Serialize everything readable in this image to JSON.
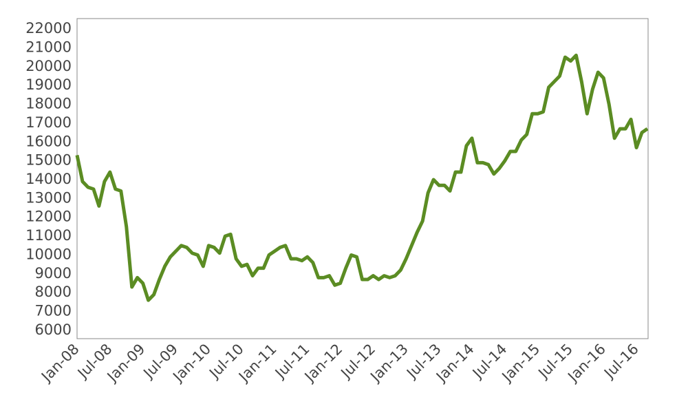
{
  "chart_data": {
    "type": "line",
    "x": [
      "Jan-08",
      "Feb-08",
      "Mar-08",
      "Apr-08",
      "May-08",
      "Jun-08",
      "Jul-08",
      "Aug-08",
      "Sep-08",
      "Oct-08",
      "Nov-08",
      "Dec-08",
      "Jan-09",
      "Feb-09",
      "Mar-09",
      "Apr-09",
      "May-09",
      "Jun-09",
      "Jul-09",
      "Aug-09",
      "Sep-09",
      "Oct-09",
      "Nov-09",
      "Dec-09",
      "Jan-10",
      "Feb-10",
      "Mar-10",
      "Apr-10",
      "May-10",
      "Jun-10",
      "Jul-10",
      "Aug-10",
      "Sep-10",
      "Oct-10",
      "Nov-10",
      "Dec-10",
      "Jan-11",
      "Feb-11",
      "Mar-11",
      "Apr-11",
      "May-11",
      "Jun-11",
      "Jul-11",
      "Aug-11",
      "Sep-11",
      "Oct-11",
      "Nov-11",
      "Dec-11",
      "Jan-12",
      "Feb-12",
      "Mar-12",
      "Apr-12",
      "May-12",
      "Jun-12",
      "Jul-12",
      "Aug-12",
      "Sep-12",
      "Oct-12",
      "Nov-12",
      "Dec-12",
      "Jan-13",
      "Feb-13",
      "Mar-13",
      "Apr-13",
      "May-13",
      "Jun-13",
      "Jul-13",
      "Aug-13",
      "Sep-13",
      "Oct-13",
      "Nov-13",
      "Dec-13",
      "Jan-14",
      "Feb-14",
      "Mar-14",
      "Apr-14",
      "May-14",
      "Jun-14",
      "Jul-14",
      "Aug-14",
      "Sep-14",
      "Oct-14",
      "Nov-14",
      "Dec-14",
      "Jan-15",
      "Feb-15",
      "Mar-15",
      "Apr-15",
      "May-15",
      "Jun-15",
      "Jul-15",
      "Aug-15",
      "Sep-15",
      "Oct-15",
      "Nov-15",
      "Dec-15",
      "Jan-16",
      "Feb-16",
      "Mar-16",
      "Apr-16",
      "May-16",
      "Jun-16",
      "Jul-16",
      "Aug-16",
      "Sep-16"
    ],
    "series": [
      {
        "color": "#5b8c23",
        "values": [
          15300,
          13900,
          13600,
          13500,
          12600,
          13900,
          14400,
          13500,
          13400,
          11500,
          8300,
          8800,
          8500,
          7600,
          7900,
          8700,
          9400,
          9900,
          10200,
          10500,
          10400,
          10100,
          10000,
          9400,
          10500,
          10400,
          10100,
          11000,
          11100,
          9800,
          9400,
          9500,
          8900,
          9300,
          9300,
          10000,
          10200,
          10400,
          10500,
          9800,
          9800,
          9700,
          9900,
          9600,
          8800,
          8800,
          8900,
          8400,
          8500,
          9300,
          10000,
          9900,
          8700,
          8700,
          8900,
          8700,
          8900,
          8800,
          8900,
          9200,
          9800,
          10500,
          11200,
          11800,
          13300,
          14000,
          13700,
          13700,
          13400,
          14400,
          14400,
          15800,
          16200,
          14900,
          14900,
          14800,
          14300,
          14600,
          15000,
          15500,
          15500,
          16100,
          16400,
          17500,
          17500,
          17600,
          18900,
          19200,
          19500,
          20500,
          20300,
          20600,
          19200,
          17500,
          18800,
          19700,
          19400,
          18000,
          16200,
          16700,
          16700,
          17200,
          15700,
          16500,
          16700
        ]
      }
    ],
    "xticks": [
      "Jan-08",
      "Jul-08",
      "Jan-09",
      "Jul-09",
      "Jan-10",
      "Jul-10",
      "Jan-11",
      "Jul-11",
      "Jan-12",
      "Jul-12",
      "Jan-13",
      "Jul-13",
      "Jan-14",
      "Jul-14",
      "Jan-15",
      "Jul-15",
      "Jan-16",
      "Jul-16"
    ],
    "ylim": [
      5560,
      22550
    ],
    "yticks": [
      6000,
      7000,
      8000,
      9000,
      10000,
      11000,
      12000,
      13000,
      14000,
      15000,
      16000,
      17000,
      18000,
      19000,
      20000,
      21000,
      22000
    ],
    "grid": false
  }
}
